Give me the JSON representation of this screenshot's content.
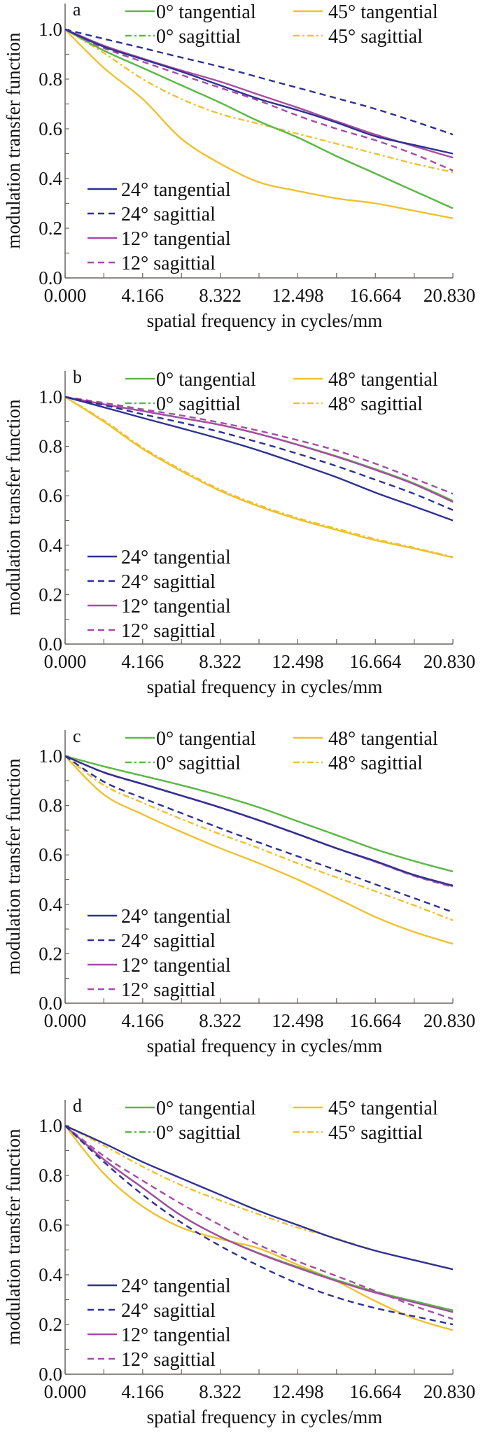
{
  "chart_data": [
    {
      "type": "line",
      "panel_label": "a",
      "xlabel": "spatial frequency in cycles/mm",
      "ylabel": "modulation transfer function",
      "xlim": [
        0,
        20.83
      ],
      "ylim": [
        0,
        1.1
      ],
      "x_ticks": [
        "0.000",
        "4.166",
        "8.322",
        "12.498",
        "16.664",
        "20.830"
      ],
      "y_ticks": [
        "0.0",
        "0.2",
        "0.4",
        "0.6",
        "0.8",
        "1.0"
      ],
      "grid": false,
      "x": [
        0,
        2.083,
        4.166,
        6.249,
        8.332,
        10.415,
        12.498,
        14.581,
        16.664,
        18.747,
        20.83
      ],
      "series": [
        {
          "name": "0° tangential",
          "color": "#5cb946",
          "line_style": "solid",
          "values": [
            1,
            0.915,
            0.845,
            0.775,
            0.705,
            0.63,
            0.565,
            0.49,
            0.42,
            0.35,
            0.28
          ]
        },
        {
          "name": "0° sagittial",
          "color": "#5cb946",
          "line_style": "dashdot",
          "values": [
            1,
            0.915,
            0.845,
            0.775,
            0.705,
            0.63,
            0.565,
            0.49,
            0.42,
            0.35,
            0.28
          ]
        },
        {
          "name": "45° tangential",
          "color": "#f0c12e",
          "line_style": "solid",
          "values": [
            1,
            0.845,
            0.72,
            0.56,
            0.46,
            0.385,
            0.35,
            0.32,
            0.3,
            0.27,
            0.24
          ]
        },
        {
          "name": "45° sagittial",
          "color": "#f0c12e",
          "line_style": "dashdot",
          "values": [
            1,
            0.905,
            0.8,
            0.72,
            0.66,
            0.62,
            0.58,
            0.54,
            0.5,
            0.46,
            0.425
          ]
        },
        {
          "name": "24° tangential",
          "color": "#2e3192",
          "line_style": "solid",
          "values": [
            1,
            0.93,
            0.88,
            0.83,
            0.775,
            0.72,
            0.675,
            0.625,
            0.57,
            0.535,
            0.5
          ]
        },
        {
          "name": "24° sagittial",
          "color": "#2e3192",
          "line_style": "dashed",
          "values": [
            1,
            0.962,
            0.925,
            0.887,
            0.85,
            0.807,
            0.765,
            0.723,
            0.68,
            0.63,
            0.577
          ]
        },
        {
          "name": "12° tangential",
          "color": "#a64ca6",
          "line_style": "solid",
          "values": [
            1,
            0.935,
            0.883,
            0.835,
            0.79,
            0.737,
            0.685,
            0.63,
            0.577,
            0.53,
            0.484
          ]
        },
        {
          "name": "12° sagittial",
          "color": "#a64ca6",
          "line_style": "dashed",
          "values": [
            1,
            0.925,
            0.87,
            0.817,
            0.765,
            0.713,
            0.653,
            0.6,
            0.554,
            0.498,
            0.432
          ]
        }
      ]
    },
    {
      "type": "line",
      "panel_label": "b",
      "xlabel": "spatial frequency in cycles/mm",
      "ylabel": "modulation transfer function",
      "xlim": [
        0,
        20.83
      ],
      "ylim": [
        0,
        1.1
      ],
      "x_ticks": [
        "0.000",
        "4.166",
        "8.322",
        "12.498",
        "16.664",
        "20.830"
      ],
      "y_ticks": [
        "0.0",
        "0.2",
        "0.4",
        "0.6",
        "0.8",
        "1.0"
      ],
      "grid": false,
      "x": [
        0,
        2.083,
        4.166,
        6.249,
        8.332,
        10.415,
        12.498,
        14.581,
        16.664,
        18.747,
        20.83
      ],
      "series": [
        {
          "name": "0° tangential",
          "color": "#5cb946",
          "line_style": "solid",
          "values": [
            1,
            0.97,
            0.943,
            0.915,
            0.887,
            0.85,
            0.807,
            0.76,
            0.708,
            0.65,
            0.58
          ]
        },
        {
          "name": "0° sagittial",
          "color": "#5cb946",
          "line_style": "dashdot",
          "values": [
            1,
            0.97,
            0.943,
            0.915,
            0.887,
            0.85,
            0.806,
            0.758,
            0.705,
            0.647,
            0.576
          ]
        },
        {
          "name": "48° tangential",
          "color": "#f0c12e",
          "line_style": "solid",
          "values": [
            1,
            0.9,
            0.79,
            0.7,
            0.62,
            0.557,
            0.505,
            0.462,
            0.42,
            0.387,
            0.35
          ]
        },
        {
          "name": "48° sagittial",
          "color": "#f0c12e",
          "line_style": "dashdot",
          "values": [
            1,
            0.905,
            0.795,
            0.705,
            0.625,
            0.562,
            0.51,
            0.467,
            0.425,
            0.39,
            0.352
          ]
        },
        {
          "name": "24° tangential",
          "color": "#2e3192",
          "line_style": "solid",
          "values": [
            1,
            0.958,
            0.915,
            0.873,
            0.83,
            0.783,
            0.73,
            0.675,
            0.613,
            0.557,
            0.5
          ]
        },
        {
          "name": "24° sagittial",
          "color": "#2e3192",
          "line_style": "dashed",
          "values": [
            1,
            0.967,
            0.93,
            0.896,
            0.858,
            0.816,
            0.77,
            0.72,
            0.665,
            0.608,
            0.542
          ]
        },
        {
          "name": "12° tangential",
          "color": "#a64ca6",
          "line_style": "solid",
          "values": [
            1,
            0.97,
            0.943,
            0.915,
            0.887,
            0.85,
            0.806,
            0.758,
            0.705,
            0.647,
            0.575
          ]
        },
        {
          "name": "12° sagittial",
          "color": "#a64ca6",
          "line_style": "dashed",
          "values": [
            1,
            0.976,
            0.95,
            0.925,
            0.896,
            0.863,
            0.825,
            0.783,
            0.73,
            0.67,
            0.608
          ]
        }
      ]
    },
    {
      "type": "line",
      "panel_label": "c",
      "xlabel": "spatial frequency in cycles/mm",
      "ylabel": "modulation transfer function",
      "xlim": [
        0,
        20.83
      ],
      "ylim": [
        0,
        1.1
      ],
      "x_ticks": [
        "0.000",
        "4.166",
        "8.322",
        "12.498",
        "16.664",
        "20.830"
      ],
      "y_ticks": [
        "0.0",
        "0.2",
        "0.4",
        "0.6",
        "0.8",
        "1.0"
      ],
      "grid": false,
      "x": [
        0,
        2.083,
        4.166,
        6.249,
        8.332,
        10.415,
        12.498,
        14.581,
        16.664,
        18.747,
        20.83
      ],
      "series": [
        {
          "name": "0° tangential",
          "color": "#5cb946",
          "line_style": "solid",
          "values": [
            1,
            0.958,
            0.92,
            0.882,
            0.84,
            0.792,
            0.736,
            0.68,
            0.623,
            0.575,
            0.533
          ]
        },
        {
          "name": "0° sagittial",
          "color": "#5cb946",
          "line_style": "dashdot",
          "values": [
            1,
            0.958,
            0.92,
            0.882,
            0.84,
            0.792,
            0.736,
            0.68,
            0.623,
            0.575,
            0.533
          ]
        },
        {
          "name": "48° tangential",
          "color": "#f0c12e",
          "line_style": "solid",
          "values": [
            1,
            0.844,
            0.764,
            0.693,
            0.627,
            0.566,
            0.5,
            0.425,
            0.349,
            0.288,
            0.24
          ]
        },
        {
          "name": "48° sagittial",
          "color": "#f0c12e",
          "line_style": "dashdot",
          "values": [
            1,
            0.882,
            0.811,
            0.745,
            0.684,
            0.627,
            0.566,
            0.509,
            0.453,
            0.396,
            0.335
          ]
        },
        {
          "name": "24° tangential",
          "color": "#2e3192",
          "line_style": "solid",
          "values": [
            1,
            0.934,
            0.887,
            0.84,
            0.792,
            0.74,
            0.684,
            0.627,
            0.575,
            0.519,
            0.476
          ]
        },
        {
          "name": "24° sagittial",
          "color": "#2e3192",
          "line_style": "dashed",
          "values": [
            1,
            0.896,
            0.83,
            0.769,
            0.708,
            0.65,
            0.594,
            0.538,
            0.481,
            0.425,
            0.368
          ]
        },
        {
          "name": "12° tangential",
          "color": "#a64ca6",
          "line_style": "solid",
          "values": [
            1,
            0.934,
            0.887,
            0.84,
            0.792,
            0.74,
            0.684,
            0.627,
            0.573,
            0.517,
            0.473
          ]
        },
        {
          "name": "12° sagittial",
          "color": "#a64ca6",
          "line_style": "dashed",
          "values": [
            1,
            0.933,
            0.886,
            0.839,
            0.791,
            0.739,
            0.683,
            0.626,
            0.572,
            0.515,
            0.47
          ]
        }
      ]
    },
    {
      "type": "line",
      "panel_label": "d",
      "xlabel": "spatial frequency in cycles/mm",
      "ylabel": "modulation transfer function",
      "xlim": [
        0,
        20.83
      ],
      "ylim": [
        0,
        1.1
      ],
      "x_ticks": [
        "0.000",
        "4.166",
        "8.322",
        "12.498",
        "16.664",
        "20.830"
      ],
      "y_ticks": [
        "0.0",
        "0.2",
        "0.4",
        "0.6",
        "0.8",
        "1.0"
      ],
      "grid": false,
      "x": [
        0,
        2.083,
        4.166,
        6.249,
        8.332,
        10.415,
        12.498,
        14.581,
        16.664,
        18.747,
        20.83
      ],
      "series": [
        {
          "name": "0° tangential",
          "color": "#5cb946",
          "line_style": "solid",
          "values": [
            1,
            0.864,
            0.75,
            0.638,
            0.553,
            0.487,
            0.431,
            0.379,
            0.332,
            0.294,
            0.257
          ]
        },
        {
          "name": "0° sagittial",
          "color": "#5cb946",
          "line_style": "dashdot",
          "values": [
            1,
            0.864,
            0.75,
            0.638,
            0.553,
            0.487,
            0.431,
            0.379,
            0.332,
            0.294,
            0.257
          ]
        },
        {
          "name": "45° tangential",
          "color": "#f0c12e",
          "line_style": "solid",
          "values": [
            1,
            0.807,
            0.675,
            0.59,
            0.544,
            0.506,
            0.44,
            0.374,
            0.294,
            0.224,
            0.177
          ]
        },
        {
          "name": "45° sagittial",
          "color": "#f0c12e",
          "line_style": "dashdot",
          "values": [
            1,
            0.92,
            0.835,
            0.76,
            0.699,
            0.643,
            0.59,
            0.546,
            0.497,
            0.459,
            0.422
          ]
        },
        {
          "name": "24° tangential",
          "color": "#2e3192",
          "line_style": "solid",
          "values": [
            1,
            0.929,
            0.854,
            0.788,
            0.722,
            0.657,
            0.6,
            0.544,
            0.497,
            0.459,
            0.422
          ]
        },
        {
          "name": "24° sagittial",
          "color": "#2e3192",
          "line_style": "dashed",
          "values": [
            1,
            0.854,
            0.722,
            0.61,
            0.516,
            0.436,
            0.365,
            0.309,
            0.266,
            0.233,
            0.2
          ]
        },
        {
          "name": "12° tangential",
          "color": "#a64ca6",
          "line_style": "solid",
          "values": [
            1,
            0.864,
            0.75,
            0.638,
            0.553,
            0.485,
            0.428,
            0.375,
            0.328,
            0.289,
            0.25
          ]
        },
        {
          "name": "12° sagittial",
          "color": "#a64ca6",
          "line_style": "dashed",
          "values": [
            1,
            0.878,
            0.779,
            0.685,
            0.6,
            0.52,
            0.454,
            0.395,
            0.335,
            0.275,
            0.222
          ]
        }
      ]
    }
  ]
}
